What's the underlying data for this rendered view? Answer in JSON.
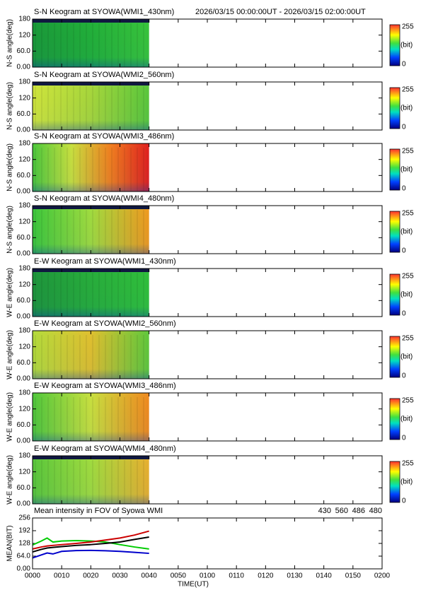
{
  "colorbar": {
    "max": 255,
    "min": 0,
    "unit": "(bit)"
  },
  "chart_data": [
    {
      "type": "keogram",
      "title": "S-N Keogram at SYOWA(WMI1_430nm)",
      "subtitle": "2026/03/15 00:00:00UT - 2026/03/15 02:00:00UT",
      "ylabel": "N-S angle(deg)",
      "ylim": [
        0,
        180
      ],
      "yticks": [
        {
          "value": 0,
          "label": "0.00"
        },
        {
          "value": 60,
          "label": "60.0"
        },
        120,
        180
      ]
    },
    {
      "type": "keogram",
      "title": "S-N Keogram at SYOWA(WMI2_560nm)",
      "ylabel": "N-S angle(deg)",
      "ylim": [
        0,
        180
      ],
      "yticks": [
        {
          "value": 0,
          "label": "0.00"
        },
        {
          "value": 60,
          "label": "60.0"
        },
        120,
        180
      ]
    },
    {
      "type": "keogram",
      "title": "S-N Keogram at SYOWA(WMI3_486nm)",
      "ylabel": "N-S angle(deg)",
      "ylim": [
        0,
        180
      ],
      "yticks": [
        {
          "value": 0,
          "label": "0.00"
        },
        {
          "value": 60,
          "label": "60.0"
        },
        120,
        180
      ]
    },
    {
      "type": "keogram",
      "title": "S-N Keogram at SYOWA(WMI4_480nm)",
      "ylabel": "N-S angle(deg)",
      "ylim": [
        0,
        180
      ],
      "yticks": [
        {
          "value": 0,
          "label": "0.00"
        },
        {
          "value": 60,
          "label": "60.0"
        },
        120,
        180
      ]
    },
    {
      "type": "keogram",
      "title": "E-W Keogram at SYOWA(WMI1_430nm)",
      "ylabel": "W-E angle(deg)",
      "ylim": [
        0,
        180
      ],
      "yticks": [
        {
          "value": 0,
          "label": "0.00"
        },
        {
          "value": 60,
          "label": "60.0"
        },
        120,
        180
      ]
    },
    {
      "type": "keogram",
      "title": "E-W Keogram at SYOWA(WMI2_560nm)",
      "ylabel": "W-E angle(deg)",
      "ylim": [
        0,
        180
      ],
      "yticks": [
        {
          "value": 0,
          "label": "0.00"
        },
        {
          "value": 60,
          "label": "60.0"
        },
        120,
        180
      ]
    },
    {
      "type": "keogram",
      "title": "E-W Keogram at SYOWA(WMI3_486nm)",
      "ylabel": "W-E angle(deg)",
      "ylim": [
        0,
        180
      ],
      "yticks": [
        {
          "value": 0,
          "label": "0.00"
        },
        {
          "value": 60,
          "label": "60.0"
        },
        120,
        180
      ]
    },
    {
      "type": "keogram",
      "title": "E-W Keogram at SYOWA(WMI4_480nm)",
      "ylabel": "W-E angle(deg)",
      "ylim": [
        0,
        180
      ],
      "yticks": [
        {
          "value": 0,
          "label": "0.00"
        },
        {
          "value": 60,
          "label": "60.0"
        },
        120,
        180
      ]
    },
    {
      "type": "line",
      "title": "Mean intensity in FOV of Syowa WMI",
      "ylabel": "MEAN(BIT)",
      "xlabel": "TIME(UT)",
      "ylim": [
        0,
        256
      ],
      "yticks": [
        {
          "value": 0,
          "label": "0.00"
        },
        {
          "value": 64,
          "label": "64.0"
        },
        128,
        192,
        256
      ],
      "xlim": [
        0,
        120
      ],
      "xticks": [
        {
          "value": 0,
          "label": "0000"
        },
        {
          "value": 10,
          "label": "0010"
        },
        {
          "value": 20,
          "label": "0020"
        },
        {
          "value": 30,
          "label": "0030"
        },
        {
          "value": 40,
          "label": "0040"
        },
        {
          "value": 50,
          "label": "0050"
        },
        {
          "value": 60,
          "label": "0100"
        },
        {
          "value": 70,
          "label": "0110"
        },
        {
          "value": 80,
          "label": "0120"
        },
        {
          "value": 90,
          "label": "0130"
        },
        {
          "value": 100,
          "label": "0140"
        },
        {
          "value": 110,
          "label": "0150"
        },
        {
          "value": 120,
          "label": "0200"
        }
      ],
      "x": [
        0,
        3,
        5,
        7,
        10,
        15,
        20,
        25,
        30,
        35,
        40
      ],
      "series": [
        {
          "name": "430",
          "color": "#0000cc",
          "values": [
            55,
            70,
            80,
            75,
            88,
            92,
            93,
            91,
            88,
            83,
            78
          ]
        },
        {
          "name": "560",
          "color": "#00cc00",
          "values": [
            120,
            140,
            155,
            135,
            140,
            142,
            140,
            135,
            122,
            110,
            100
          ]
        },
        {
          "name": "486",
          "color": "#cc0000",
          "values": [
            100,
            110,
            115,
            118,
            122,
            128,
            135,
            145,
            155,
            170,
            190
          ]
        },
        {
          "name": "480",
          "color": "#000000",
          "values": [
            85,
            98,
            105,
            108,
            112,
            118,
            122,
            128,
            135,
            148,
            160
          ]
        }
      ]
    }
  ]
}
